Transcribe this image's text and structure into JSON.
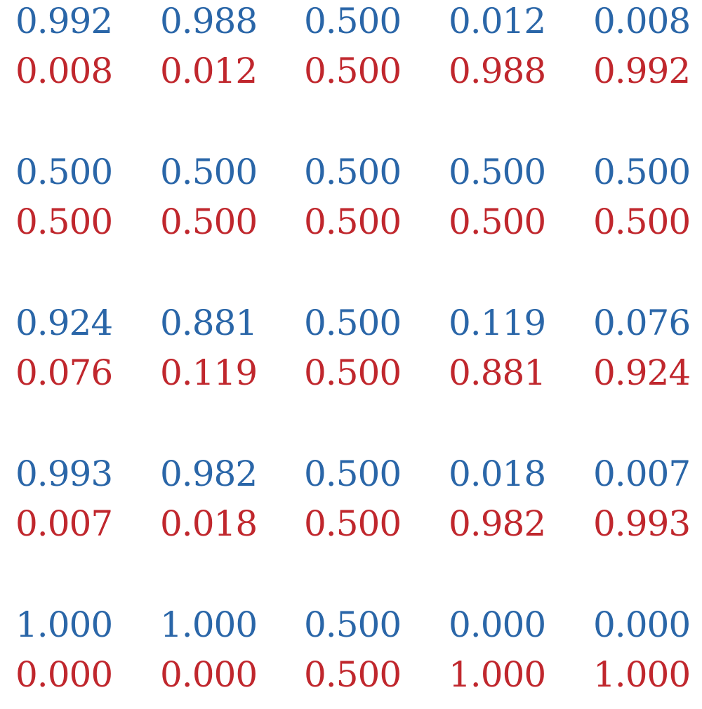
{
  "colors": {
    "top": "#2a66a8",
    "bottom": "#c0272d"
  },
  "rows": [
    {
      "cells": [
        {
          "top": "0.992",
          "bottom": "0.008"
        },
        {
          "top": "0.988",
          "bottom": "0.012"
        },
        {
          "top": "0.500",
          "bottom": "0.500"
        },
        {
          "top": "0.012",
          "bottom": "0.988"
        },
        {
          "top": "0.008",
          "bottom": "0.992"
        }
      ]
    },
    {
      "cells": [
        {
          "top": "0.500",
          "bottom": "0.500"
        },
        {
          "top": "0.500",
          "bottom": "0.500"
        },
        {
          "top": "0.500",
          "bottom": "0.500"
        },
        {
          "top": "0.500",
          "bottom": "0.500"
        },
        {
          "top": "0.500",
          "bottom": "0.500"
        }
      ]
    },
    {
      "cells": [
        {
          "top": "0.924",
          "bottom": "0.076"
        },
        {
          "top": "0.881",
          "bottom": "0.119"
        },
        {
          "top": "0.500",
          "bottom": "0.500"
        },
        {
          "top": "0.119",
          "bottom": "0.881"
        },
        {
          "top": "0.076",
          "bottom": "0.924"
        }
      ]
    },
    {
      "cells": [
        {
          "top": "0.993",
          "bottom": "0.007"
        },
        {
          "top": "0.982",
          "bottom": "0.018"
        },
        {
          "top": "0.500",
          "bottom": "0.500"
        },
        {
          "top": "0.018",
          "bottom": "0.982"
        },
        {
          "top": "0.007",
          "bottom": "0.993"
        }
      ]
    },
    {
      "cells": [
        {
          "top": "1.000",
          "bottom": "0.000"
        },
        {
          "top": "1.000",
          "bottom": "0.000"
        },
        {
          "top": "0.500",
          "bottom": "0.500"
        },
        {
          "top": "0.000",
          "bottom": "1.000"
        },
        {
          "top": "0.000",
          "bottom": "1.000"
        }
      ]
    }
  ]
}
